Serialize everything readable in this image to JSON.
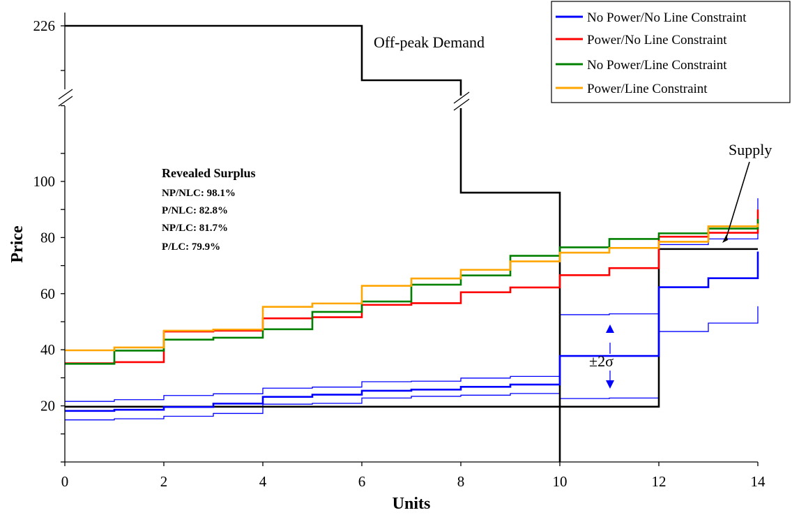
{
  "chart_data": {
    "type": "line",
    "step": true,
    "xlabel": "Units",
    "ylabel": "Price",
    "xlim": [
      0,
      14
    ],
    "x_ticks": [
      "0",
      "2",
      "4",
      "6",
      "8",
      "10",
      "12",
      "14"
    ],
    "y_ticks": [
      "20",
      "40",
      "60",
      "80",
      "100"
    ],
    "y_break_tick": "226",
    "y_axis_break": true,
    "grid": false,
    "legend_position": "top-right",
    "series": [
      {
        "name": "No Power/No Line Constraint",
        "color": "#0000ff",
        "x": [
          0,
          1,
          2,
          3,
          4,
          5,
          6,
          7,
          8,
          9,
          10,
          11,
          12,
          13,
          14
        ],
        "y": [
          18.2,
          18.6,
          19.6,
          20.8,
          23.2,
          24.0,
          25.4,
          25.8,
          26.8,
          27.6,
          37.8,
          37.8,
          62.3,
          65.5,
          75
        ]
      },
      {
        "name": "Power/No Line Constraint",
        "color": "#ff0000",
        "x": [
          0,
          1,
          2,
          3,
          4,
          5,
          6,
          7,
          8,
          9,
          10,
          11,
          12,
          13,
          14
        ],
        "y": [
          35.2,
          35.6,
          46.5,
          46.8,
          51.2,
          51.6,
          56.0,
          56.6,
          60.5,
          62.2,
          66.6,
          69.1,
          80.3,
          81.7,
          90
        ]
      },
      {
        "name": "No Power/Line Constraint",
        "color": "#008000",
        "x": [
          0,
          1,
          2,
          3,
          4,
          5,
          6,
          7,
          8,
          9,
          10,
          11,
          12,
          13,
          14
        ],
        "y": [
          35.0,
          39.7,
          43.6,
          44.3,
          47.3,
          53.5,
          57.2,
          63.2,
          66.5,
          73.5,
          76.5,
          79.5,
          81.5,
          83.2,
          86.6
        ]
      },
      {
        "name": "Power/Line Constraint",
        "color": "#ffa500",
        "x": [
          0,
          1,
          2,
          3,
          4,
          5,
          6,
          7,
          8,
          9,
          10,
          11,
          12,
          13,
          14
        ],
        "y": [
          39.8,
          40.8,
          46.8,
          47.2,
          55.3,
          56.5,
          62.8,
          65.4,
          68.5,
          71.5,
          74.6,
          76.3,
          78.5,
          84.0,
          85.0
        ]
      }
    ],
    "sigma_bands": [
      {
        "x": [
          0,
          1,
          2,
          3,
          4,
          5,
          6,
          7,
          8,
          9,
          10,
          11,
          12,
          13,
          14
        ],
        "y": [
          21.6,
          22.2,
          23.7,
          24.3,
          26.3,
          26.7,
          28.6,
          28.8,
          29.9,
          30.5,
          52.5,
          52.8,
          77.5,
          79.5,
          94
        ]
      },
      {
        "x": [
          0,
          1,
          2,
          3,
          4,
          5,
          6,
          7,
          8,
          9,
          10,
          11,
          12,
          13,
          14
        ],
        "y": [
          15.0,
          15.4,
          16.3,
          17.3,
          20.6,
          20.9,
          22.8,
          23.4,
          23.8,
          24.4,
          22.6,
          22.8,
          46.5,
          49.5,
          55.5
        ]
      }
    ],
    "demand": {
      "steps": [
        {
          "x0": 0,
          "x1": 6,
          "y": 226,
          "broken": true
        },
        {
          "x0": 6,
          "x1": 8,
          "y": 210,
          "broken": true
        },
        {
          "x0": 8,
          "x1": 10,
          "y": 96,
          "broken": false
        }
      ]
    },
    "supply": {
      "steps": [
        {
          "x0": 0,
          "x1": 12,
          "y": 19.7
        },
        {
          "x0": 12,
          "x1": 14,
          "y": 75.9
        }
      ]
    },
    "annotations": {
      "demand_label": "Off-peak Demand",
      "supply_label": "Supply",
      "sigma_label": "±2σ",
      "surplus_title": "Revealed Surplus",
      "surplus_lines": [
        "NP/NLC: 98.1%",
        "P/NLC: 82.8%",
        "NP/LC: 81.7%",
        "P/LC: 79.9%"
      ]
    }
  }
}
